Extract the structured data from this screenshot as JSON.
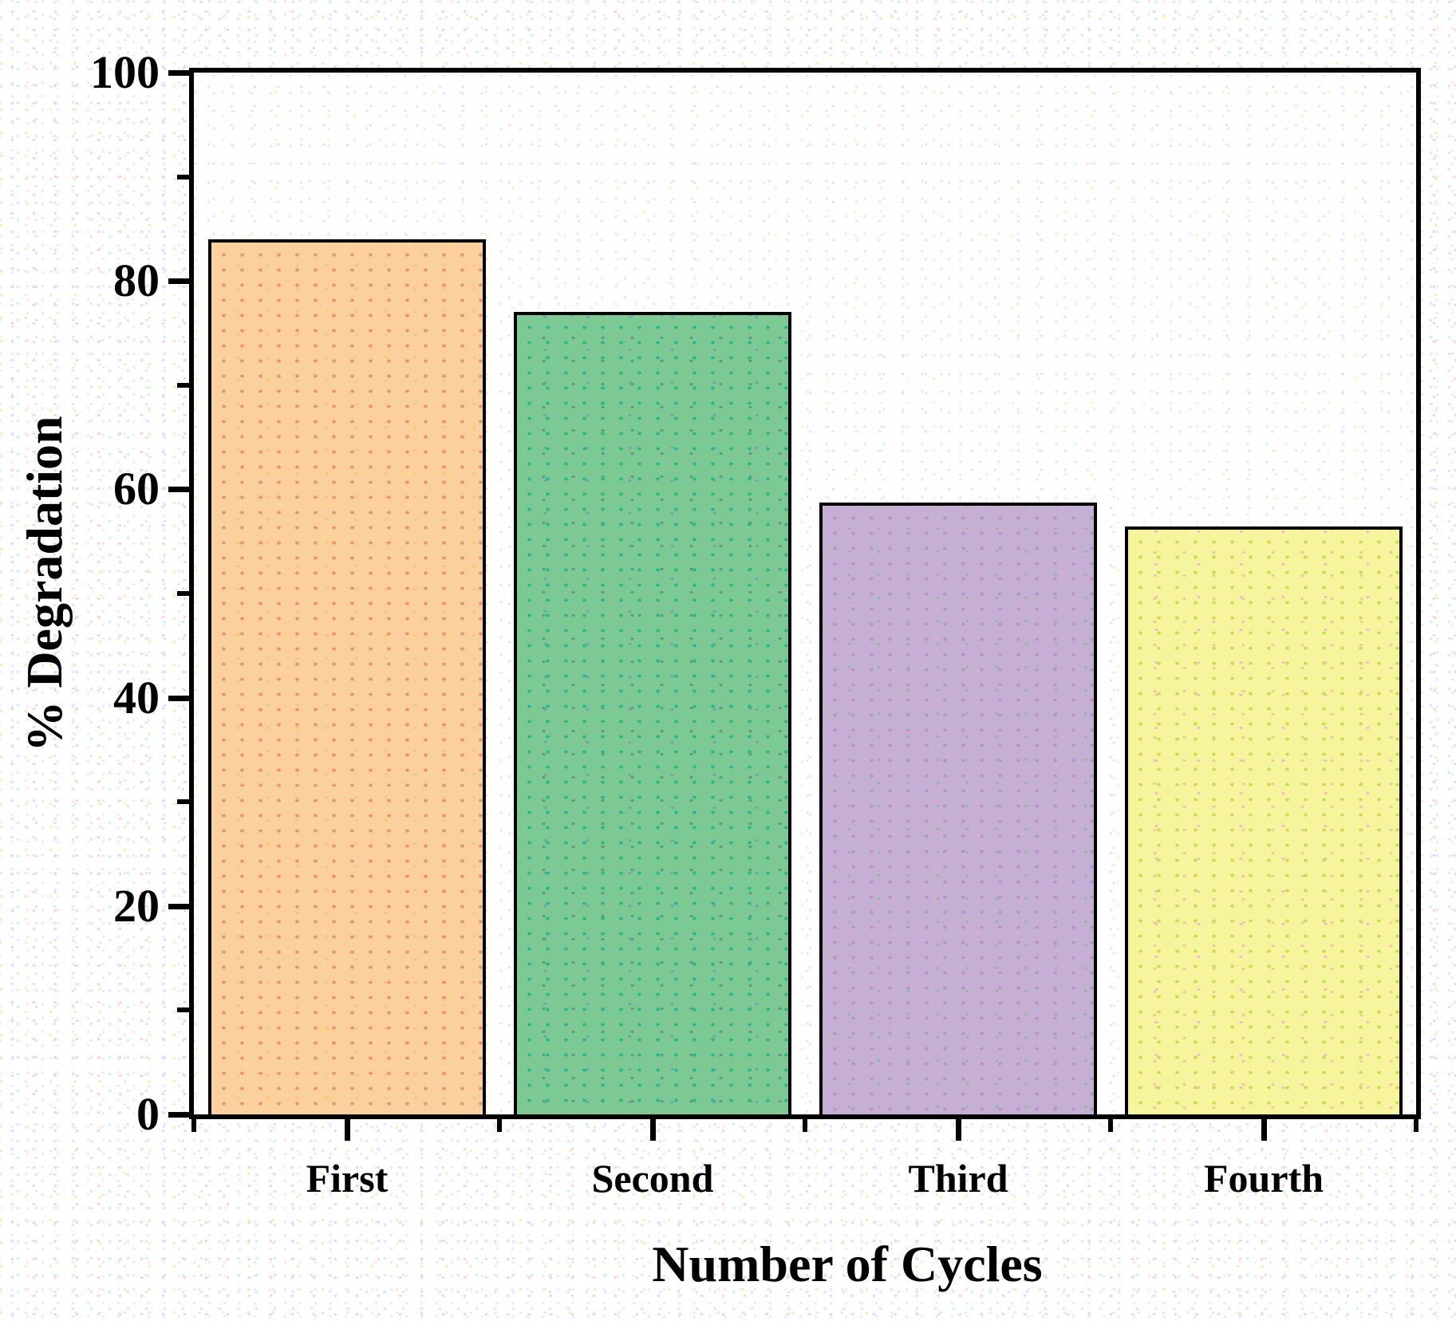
{
  "chart_data": {
    "type": "bar",
    "title": "",
    "xlabel": "Number of Cycles",
    "ylabel": "% Degradation",
    "categories": [
      "First",
      "Second",
      "Third",
      "Fourth"
    ],
    "values": [
      84,
      77,
      58.7,
      56.4
    ],
    "ylim": [
      0,
      100
    ],
    "yticks_major": [
      0,
      20,
      40,
      60,
      80,
      100
    ],
    "yticks_minor": [
      10,
      30,
      50,
      70,
      90
    ],
    "grid": false,
    "legend": false,
    "axis_color": "#000000",
    "bar_border_color": "#000000",
    "bars": [
      {
        "category": "First",
        "value": 84,
        "base": "#fbd09c",
        "dot1": "#f2906b",
        "dot2": "#f5c96f",
        "dot3": "#f6e07e"
      },
      {
        "category": "Second",
        "value": 77,
        "base": "#7cc993",
        "dot1": "#2ab98d",
        "dot2": "#5e9c7e",
        "dot3": "#7a9fb0"
      },
      {
        "category": "Third",
        "value": 58.7,
        "base": "#c5b0d3",
        "dot1": "#b993cb",
        "dot2": "#93b8a4",
        "dot3": "#e3a8c8"
      },
      {
        "category": "Fourth",
        "value": 56.4,
        "base": "#f6f49d",
        "dot1": "#c8df52",
        "dot2": "#efc9a0",
        "dot3": "#f0b9d4"
      }
    ]
  },
  "layout_note": "y axis 0-100, major ticks every 20, minor every 10; category ticks centered under bars with minor ticks at category boundaries"
}
